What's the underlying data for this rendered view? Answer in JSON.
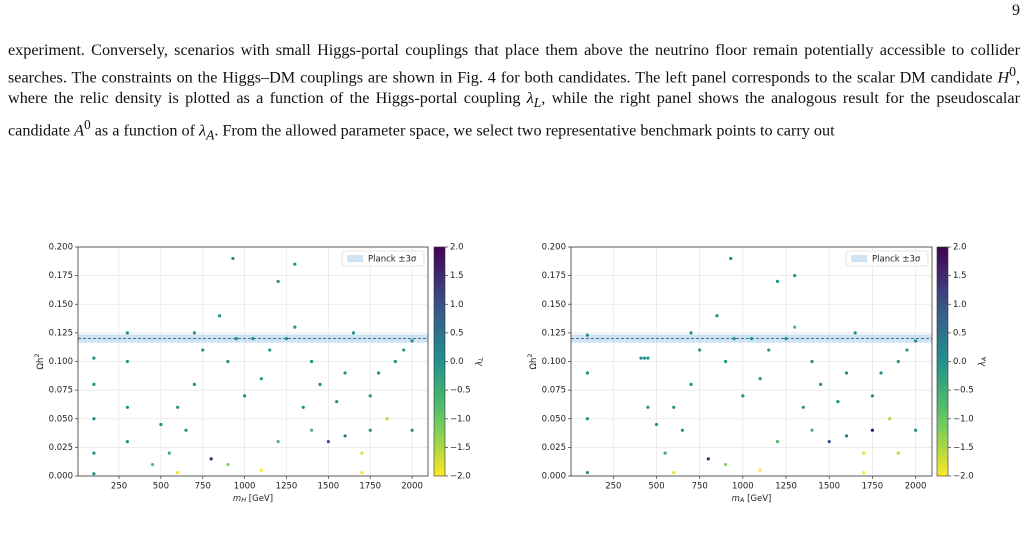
{
  "page_number": "9",
  "paragraph": [
    "experiment. Conversely, scenarios with small Higgs-portal couplings that place them above the neutrino floor remain potentially accessible to collider searches. The constraints on the Higgs–DM couplings are shown in Fig. 4 for both candidates. The left panel corresponds to the scalar DM candidate ",
    "H",
    "0",
    ", where the relic density is plotted as a function of the Higgs-portal coupling ",
    "λ",
    "L",
    ", while the right panel shows the analogous result for the pseudoscalar candidate ",
    "A",
    "0",
    " as a function of ",
    "λ",
    "A",
    ". From the allowed parameter space, we select two representative benchmark points to carry out"
  ],
  "chart_data": [
    {
      "type": "scatter",
      "x_label": [
        "m",
        "H",
        " [GeV]"
      ],
      "y_label": [
        "Ωh",
        "2"
      ],
      "colorbar_label": [
        "λ",
        "L"
      ],
      "legend": "Planck ±3σ",
      "legend_position": "upper right",
      "band": [
        0.1164,
        0.1236
      ],
      "band_center": 0.12,
      "band_color": "#a9cce8",
      "line_color": "#1f4e79",
      "colormap": "viridis_r",
      "clim": [
        -2,
        2
      ],
      "grid": true,
      "xlim": [
        5,
        2095
      ],
      "ylim": [
        0,
        0.2
      ],
      "xticks": [
        250,
        500,
        750,
        1000,
        1250,
        1500,
        1750,
        2000
      ],
      "yticks": [
        {
          "value": 0,
          "label": "0.000"
        },
        {
          "value": 0.025,
          "label": "0.025"
        },
        {
          "value": 0.05,
          "label": "0.050"
        },
        {
          "value": 0.075,
          "label": "0.075"
        },
        {
          "value": 0.1,
          "label": "0.100"
        },
        {
          "value": 0.125,
          "label": "0.125"
        },
        {
          "value": 0.15,
          "label": "0.150"
        },
        {
          "value": 0.175,
          "label": "0.175"
        },
        {
          "value": 0.2,
          "label": "0.200"
        }
      ],
      "cticks": [
        {
          "value": -2,
          "label": "−2.0"
        },
        {
          "value": -1.5,
          "label": "−1.5"
        },
        {
          "value": -1,
          "label": "−1.0"
        },
        {
          "value": -0.5,
          "label": "−0.5"
        },
        {
          "value": 0,
          "label": "0.0"
        },
        {
          "value": 0.5,
          "label": "0.5"
        },
        {
          "value": 1,
          "label": "1.0"
        },
        {
          "value": 1.5,
          "label": "1.5"
        },
        {
          "value": 2,
          "label": "2.0"
        }
      ],
      "x": [
        100,
        100,
        100,
        100,
        100,
        300,
        300,
        300,
        300,
        450,
        500,
        550,
        600,
        650,
        700,
        700,
        750,
        800,
        850,
        900,
        930,
        950,
        1000,
        1050,
        1100,
        1150,
        1200,
        1250,
        1300,
        1300,
        1350,
        1400,
        1450,
        1500,
        1550,
        1600,
        1650,
        1700,
        1750,
        1800,
        1850,
        1900,
        1950,
        2000,
        2000,
        1600,
        1200,
        900,
        1700,
        600,
        1400,
        1100,
        1750
      ],
      "values": [
        0.103,
        0.08,
        0.05,
        0.02,
        0.002,
        0.125,
        0.1,
        0.06,
        0.03,
        0.01,
        0.045,
        0.02,
        0.06,
        0.04,
        0.125,
        0.08,
        0.11,
        0.015,
        0.14,
        0.1,
        0.19,
        0.12,
        0.07,
        0.12,
        0.005,
        0.11,
        0.17,
        0.12,
        0.185,
        0.13,
        0.06,
        0.04,
        0.08,
        0.03,
        0.065,
        0.09,
        0.125,
        0.02,
        0.07,
        0.09,
        0.05,
        0.1,
        0.11,
        0.118,
        0.04,
        0.035,
        0.03,
        0.01,
        0.003,
        0.003,
        0.1,
        0.085,
        0.04
      ],
      "z": [
        0,
        0,
        0.1,
        0,
        0,
        0,
        0,
        0,
        0.1,
        -0.8,
        0,
        -0.5,
        0,
        0,
        0,
        0,
        0,
        1.5,
        0,
        0,
        0,
        0,
        0,
        0,
        -2,
        0,
        0,
        0,
        0,
        0,
        0,
        -0.6,
        0,
        1,
        0,
        0,
        0,
        -1.8,
        0,
        0,
        -1.5,
        0,
        0,
        0,
        0,
        0.5,
        -0.7,
        -1.2,
        -2,
        -1.9,
        0,
        0,
        0
      ]
    },
    {
      "type": "scatter",
      "x_label": [
        "m",
        "A",
        " [GeV]"
      ],
      "y_label": [
        "Ωh",
        "2"
      ],
      "colorbar_label": [
        "λ",
        "A"
      ],
      "legend": "Planck ±3σ",
      "legend_position": "upper right",
      "band": [
        0.1164,
        0.1236
      ],
      "band_center": 0.12,
      "band_color": "#a9cce8",
      "line_color": "#1f4e79",
      "colormap": "viridis_r",
      "clim": [
        -2,
        2
      ],
      "grid": true,
      "xlim": [
        5,
        2095
      ],
      "ylim": [
        0,
        0.2
      ],
      "xticks": [
        250,
        500,
        750,
        1000,
        1250,
        1500,
        1750,
        2000
      ],
      "yticks": [
        {
          "value": 0,
          "label": "0.000"
        },
        {
          "value": 0.025,
          "label": "0.025"
        },
        {
          "value": 0.05,
          "label": "0.050"
        },
        {
          "value": 0.075,
          "label": "0.075"
        },
        {
          "value": 0.1,
          "label": "0.100"
        },
        {
          "value": 0.125,
          "label": "0.125"
        },
        {
          "value": 0.15,
          "label": "0.150"
        },
        {
          "value": 0.175,
          "label": "0.175"
        },
        {
          "value": 0.2,
          "label": "0.200"
        }
      ],
      "cticks": [
        {
          "value": -2,
          "label": "−2.0"
        },
        {
          "value": -1.5,
          "label": "−1.5"
        },
        {
          "value": -1,
          "label": "−1.0"
        },
        {
          "value": -0.5,
          "label": "−0.5"
        },
        {
          "value": 0,
          "label": "0.0"
        },
        {
          "value": 0.5,
          "label": "0.5"
        },
        {
          "value": 1,
          "label": "1.0"
        },
        {
          "value": 1.5,
          "label": "1.5"
        },
        {
          "value": 2,
          "label": "2.0"
        }
      ],
      "x": [
        100,
        100,
        100,
        100,
        410,
        430,
        450,
        450,
        500,
        550,
        600,
        650,
        700,
        700,
        750,
        800,
        850,
        900,
        930,
        950,
        1000,
        1050,
        1100,
        1150,
        1200,
        1250,
        1300,
        1300,
        1350,
        1400,
        1450,
        1500,
        1550,
        1600,
        1650,
        1700,
        1750,
        1800,
        1850,
        1900,
        1950,
        2000,
        2000,
        1600,
        1200,
        900,
        1700,
        600,
        1400,
        1100,
        1750,
        1900
      ],
      "values": [
        0.123,
        0.09,
        0.05,
        0.003,
        0.103,
        0.103,
        0.103,
        0.06,
        0.045,
        0.02,
        0.06,
        0.04,
        0.125,
        0.08,
        0.11,
        0.015,
        0.14,
        0.1,
        0.19,
        0.12,
        0.07,
        0.12,
        0.005,
        0.11,
        0.17,
        0.12,
        0.175,
        0.13,
        0.06,
        0.04,
        0.08,
        0.03,
        0.065,
        0.09,
        0.125,
        0.02,
        0.07,
        0.09,
        0.05,
        0.1,
        0.11,
        0.118,
        0.04,
        0.035,
        0.03,
        0.01,
        0.003,
        0.003,
        0.1,
        0.085,
        0.04,
        0.02
      ],
      "z": [
        0,
        0,
        0,
        0,
        0,
        0,
        0,
        0,
        0,
        -0.5,
        0,
        0,
        0,
        0,
        0,
        1.5,
        0,
        0,
        0,
        0,
        0,
        0,
        -2,
        0,
        0,
        0,
        0,
        -0.8,
        0,
        -0.6,
        0,
        1,
        0,
        0,
        0,
        -1.8,
        0,
        0,
        -1.5,
        0,
        0,
        0,
        0,
        0.5,
        -0.7,
        -1.2,
        -2,
        -1.9,
        0,
        0,
        1.8,
        -1.6
      ]
    }
  ]
}
